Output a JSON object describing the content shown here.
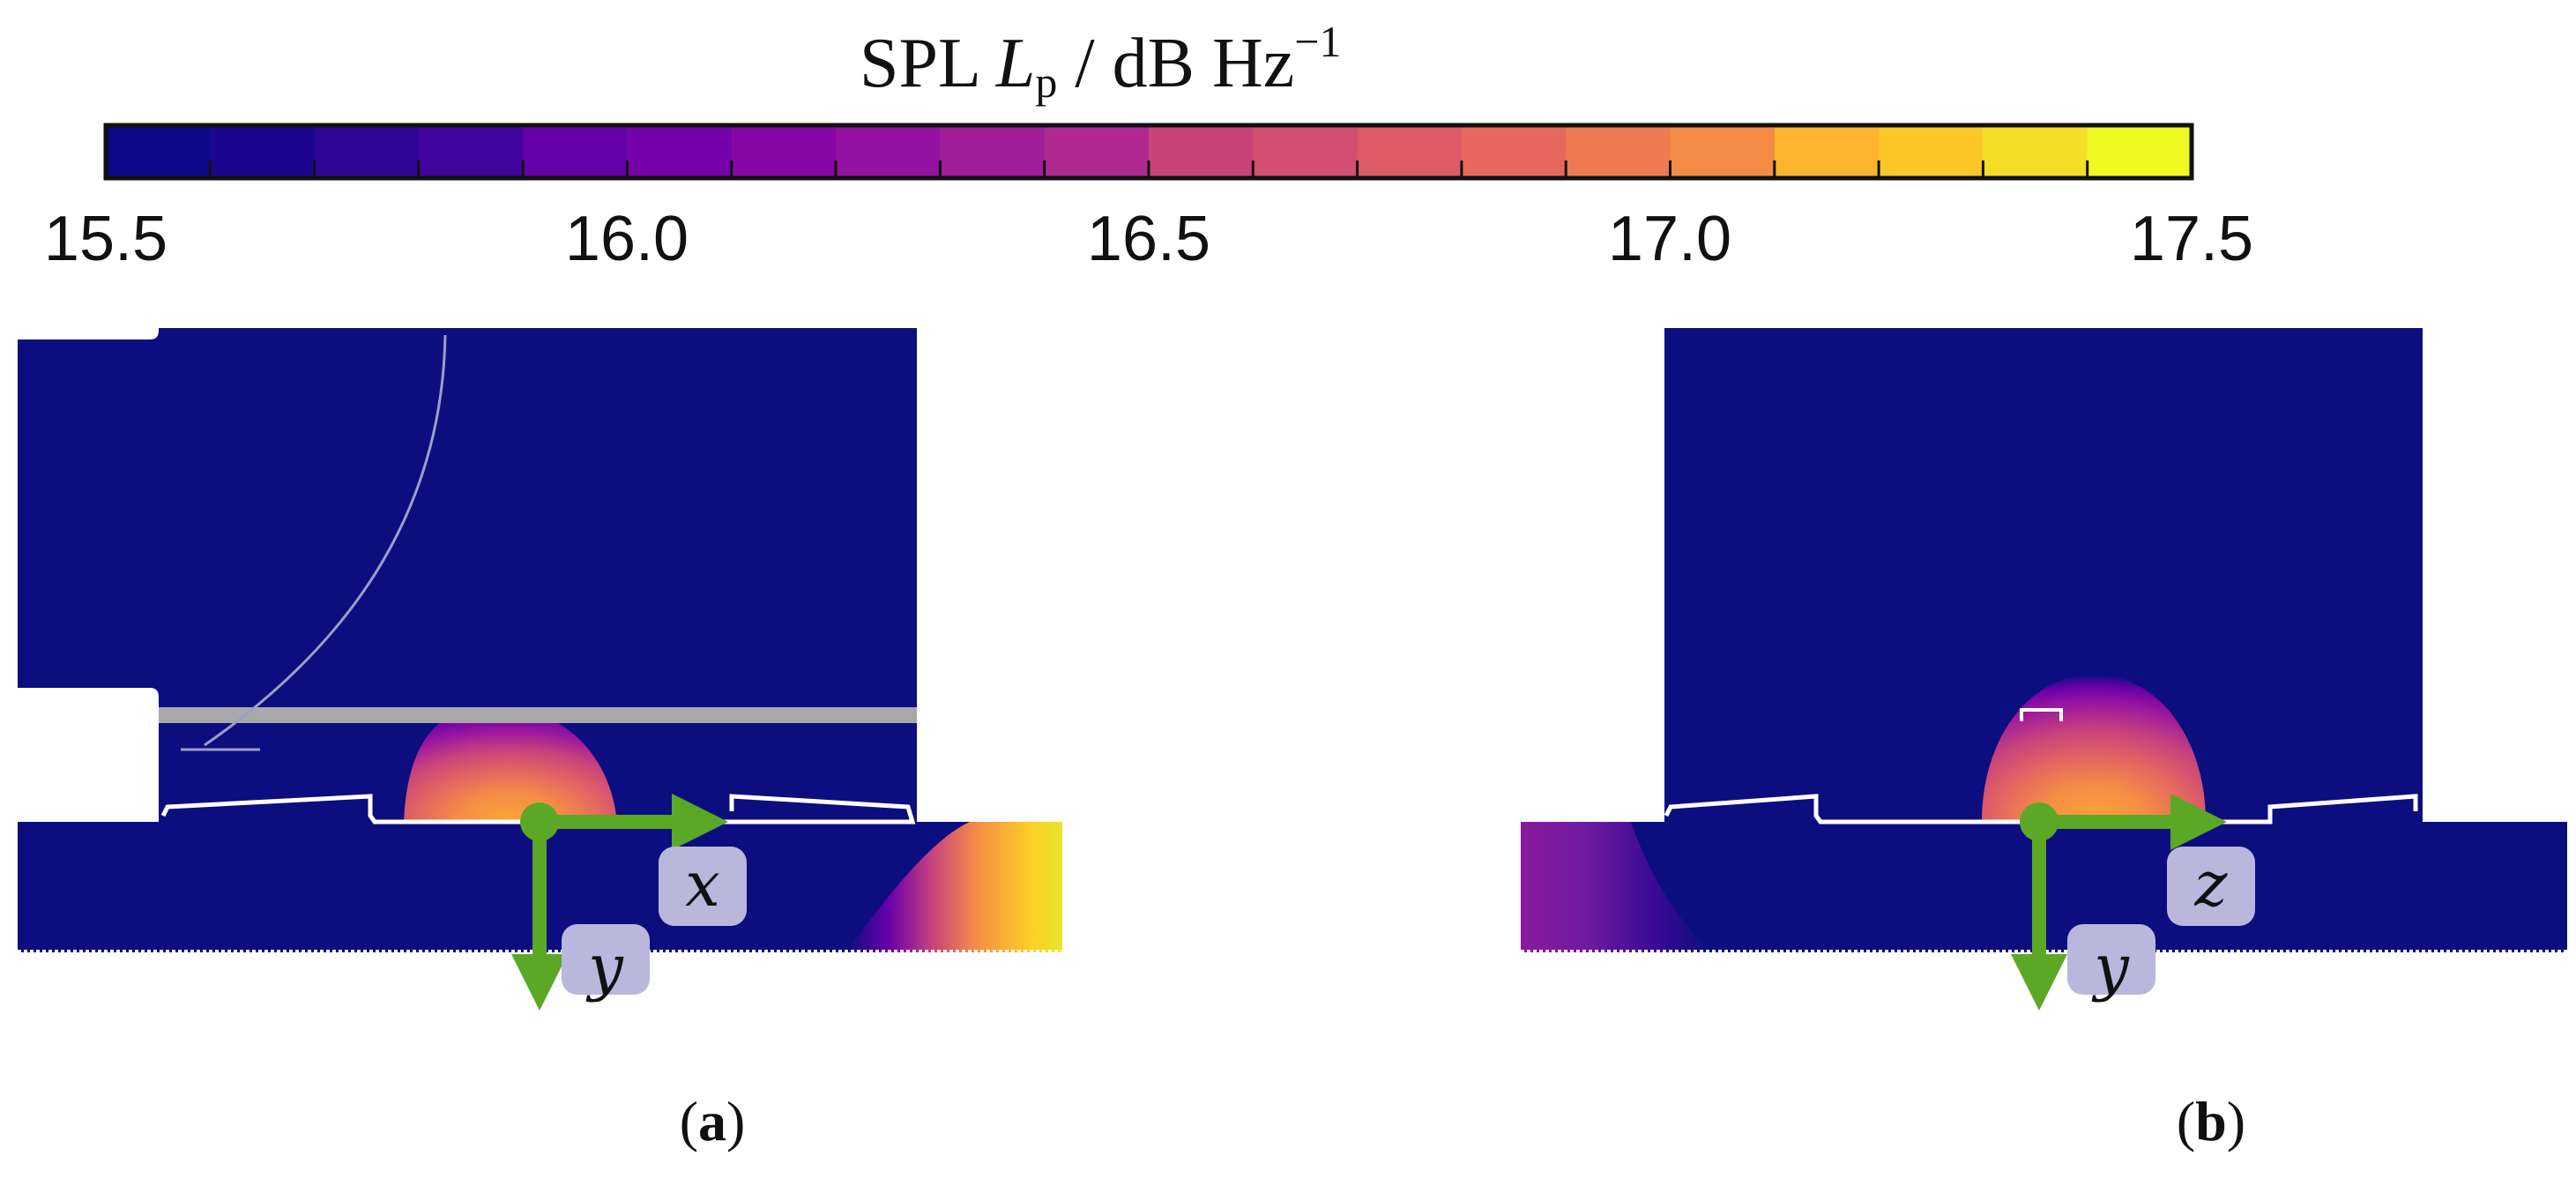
{
  "colorbar": {
    "title_prefix": "SPL ",
    "title_symbol": "L",
    "title_subscript": "p",
    "title_suffix": " / dB Hz",
    "title_exponent": "−1",
    "min": 15.5,
    "max": 17.5,
    "ticks": [
      "15.5",
      "16.0",
      "16.5",
      "17.0",
      "17.5"
    ],
    "levels": 20,
    "colors": [
      "#0d0887",
      "#1b068d",
      "#2f0596",
      "#41049d",
      "#5302a3",
      "#6401a8",
      "#7501a8",
      "#8606a6",
      "#9511a1",
      "#a21d9a",
      "#b02991",
      "#bd3786",
      "#c8437b",
      "#d24f71",
      "#dc5b67",
      "#e6685d",
      "#ee7a51",
      "#f48c45",
      "#f99f3a",
      "#fcb42f",
      "#fdc827",
      "#f5de25",
      "#f0f921"
    ]
  },
  "panels": [
    {
      "label": "a",
      "axis_horizontal": "x",
      "axis_vertical": "y"
    },
    {
      "label": "b",
      "axis_horizontal": "z",
      "axis_vertical": "y"
    }
  ],
  "styles": {
    "field_color": "#0c0e7f",
    "axis_arrow_color": "#5aa826",
    "label_box_color": "#b9b7dc",
    "plate_color": "#a8a8a8"
  }
}
